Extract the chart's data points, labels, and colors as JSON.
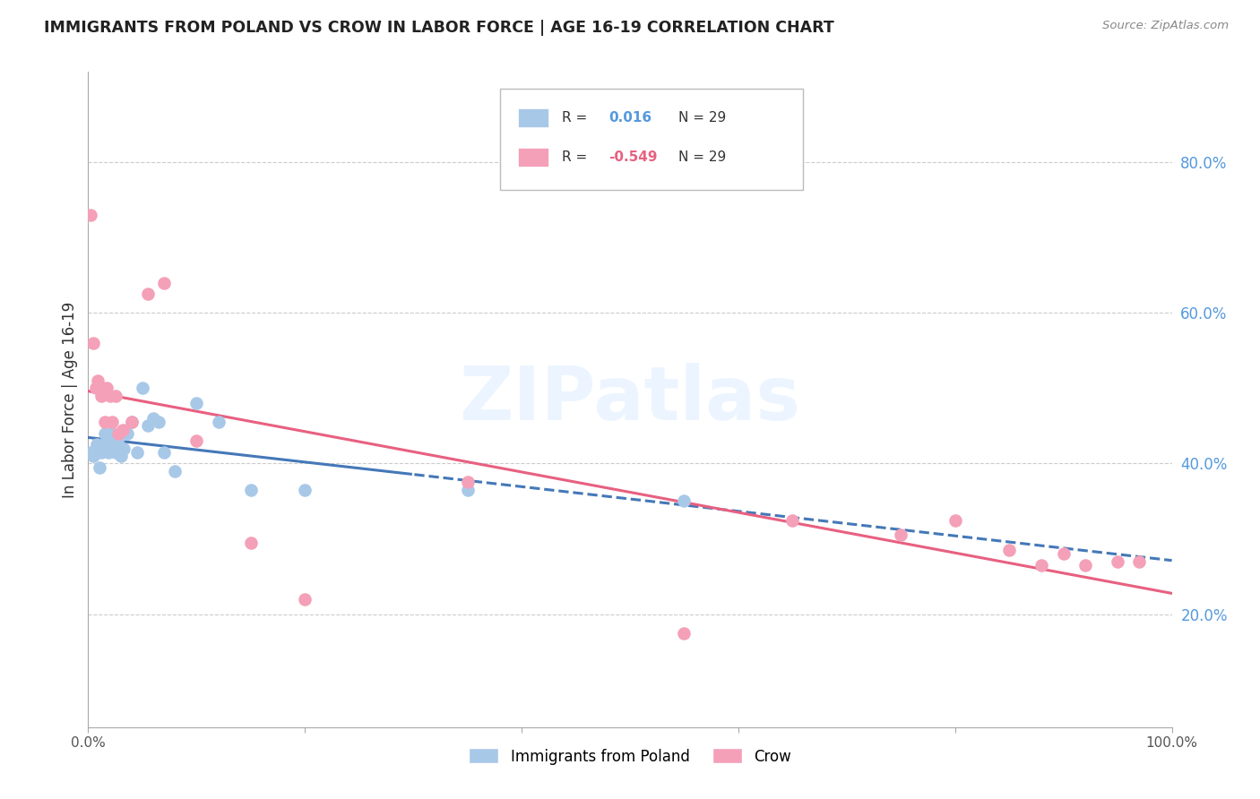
{
  "title": "IMMIGRANTS FROM POLAND VS CROW IN LABOR FORCE | AGE 16-19 CORRELATION CHART",
  "source": "Source: ZipAtlas.com",
  "ylabel": "In Labor Force | Age 16-19",
  "right_yticks": [
    0.2,
    0.4,
    0.6,
    0.8
  ],
  "right_ytick_labels": [
    "20.0%",
    "40.0%",
    "60.0%",
    "80.0%"
  ],
  "xlim": [
    0.0,
    1.0
  ],
  "ylim": [
    0.05,
    0.92
  ],
  "poland_color": "#a8c8e8",
  "crow_color": "#f4a0b8",
  "poland_line_color": "#4478b8",
  "crow_line_color": "#e86080",
  "poland_R": 0.016,
  "poland_N": 29,
  "crow_R": -0.549,
  "crow_N": 29,
  "watermark": "ZIPatlas",
  "poland_x": [
    0.002,
    0.005,
    0.008,
    0.01,
    0.012,
    0.015,
    0.017,
    0.019,
    0.021,
    0.023,
    0.025,
    0.027,
    0.03,
    0.033,
    0.036,
    0.04,
    0.045,
    0.05,
    0.055,
    0.06,
    0.065,
    0.07,
    0.08,
    0.1,
    0.12,
    0.15,
    0.2,
    0.35,
    0.55
  ],
  "poland_y": [
    0.415,
    0.41,
    0.425,
    0.395,
    0.415,
    0.44,
    0.43,
    0.415,
    0.44,
    0.42,
    0.415,
    0.43,
    0.41,
    0.42,
    0.44,
    0.455,
    0.415,
    0.5,
    0.45,
    0.46,
    0.455,
    0.415,
    0.39,
    0.48,
    0.455,
    0.365,
    0.365,
    0.365,
    0.35
  ],
  "crow_x": [
    0.002,
    0.005,
    0.007,
    0.009,
    0.012,
    0.015,
    0.017,
    0.02,
    0.022,
    0.025,
    0.028,
    0.032,
    0.04,
    0.055,
    0.07,
    0.1,
    0.15,
    0.2,
    0.35,
    0.55,
    0.65,
    0.75,
    0.8,
    0.85,
    0.88,
    0.9,
    0.92,
    0.95,
    0.97
  ],
  "crow_y": [
    0.73,
    0.56,
    0.5,
    0.51,
    0.49,
    0.455,
    0.5,
    0.49,
    0.455,
    0.49,
    0.44,
    0.445,
    0.455,
    0.625,
    0.64,
    0.43,
    0.295,
    0.22,
    0.375,
    0.175,
    0.325,
    0.305,
    0.325,
    0.285,
    0.265,
    0.28,
    0.265,
    0.27,
    0.27
  ]
}
